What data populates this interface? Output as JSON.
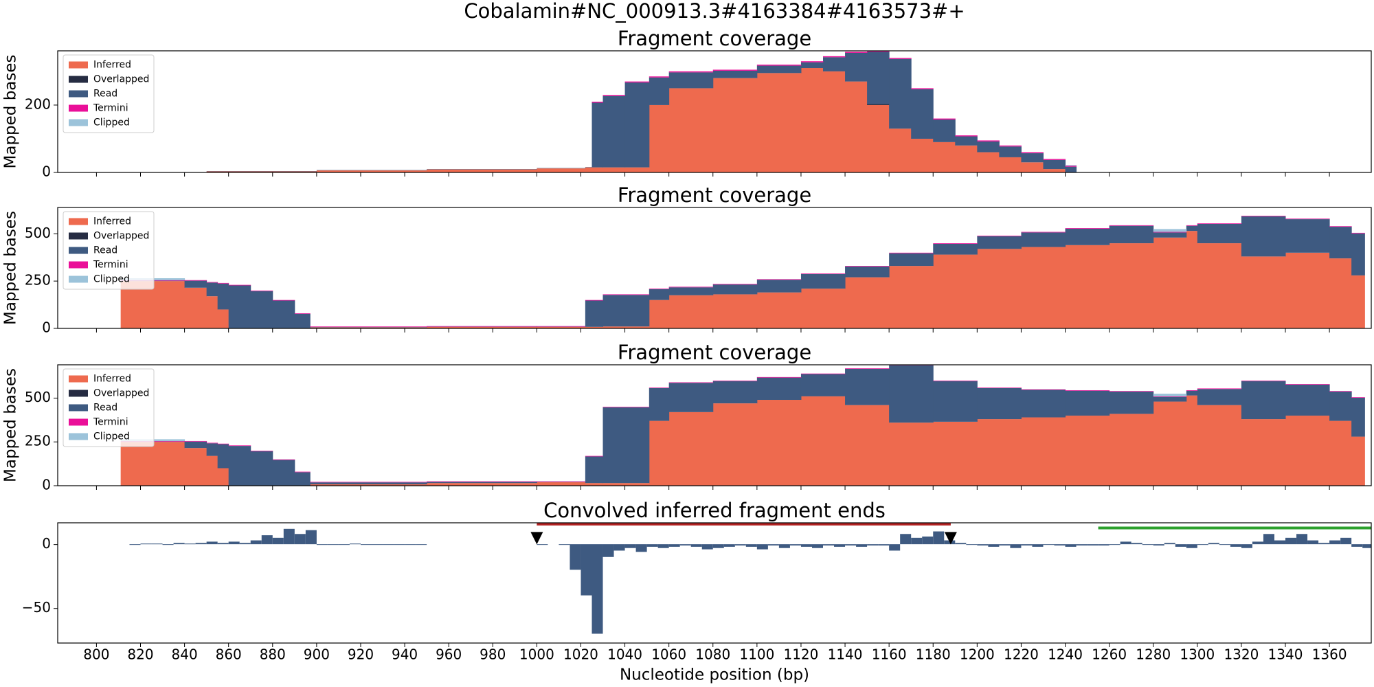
{
  "title": "Cobalamin#NC_000913.3#4163384#4163573#+",
  "chart_data": [
    {
      "type": "stacked-step",
      "title": "Fragment coverage",
      "ylabel": "Mapped bases",
      "legend": "upper left",
      "xlim": [
        782.4,
        1379
      ],
      "xticks": [
        800,
        820,
        840,
        860,
        880,
        900,
        920,
        940,
        960,
        980,
        1000,
        1020,
        1040,
        1060,
        1080,
        1100,
        1120,
        1140,
        1160,
        1180,
        1200,
        1220,
        1240,
        1260,
        1280,
        1300,
        1320,
        1340,
        1360
      ],
      "ylim": [
        0,
        361
      ],
      "yticks": [
        0,
        200
      ],
      "x": [
        812,
        850,
        900,
        950,
        1000,
        1022,
        1025,
        1030,
        1040,
        1051,
        1060,
        1080,
        1100,
        1120,
        1130,
        1140,
        1150,
        1160,
        1170,
        1180,
        1190,
        1200,
        1210,
        1220,
        1230,
        1240,
        1245
      ],
      "series": [
        {
          "name": "Inferred",
          "color": "#ee6a4e",
          "values": [
            0,
            3,
            6,
            9,
            12,
            15,
            15,
            15,
            15,
            200,
            250,
            280,
            295,
            310,
            300,
            270,
            200,
            130,
            100,
            90,
            80,
            60,
            45,
            30,
            10,
            0,
            0
          ]
        },
        {
          "name": "Overlapped",
          "color": "#262c42",
          "values": [
            0,
            0,
            0,
            0,
            0,
            0,
            0,
            0,
            0,
            0,
            0,
            0,
            0,
            0,
            0,
            0,
            3,
            0,
            0,
            0,
            0,
            0,
            0,
            0,
            0,
            0,
            0
          ]
        },
        {
          "name": "Read",
          "color": "#3e5a81",
          "values": [
            1,
            1,
            1,
            1,
            1,
            1,
            192,
            212,
            252,
            82,
            47,
            22,
            22,
            17,
            42,
            85,
            155,
            207,
            147,
            67,
            27,
            32,
            32,
            27,
            27,
            17,
            0
          ]
        },
        {
          "name": "Termini",
          "color": "#ea0f98",
          "values": [
            0,
            0,
            0,
            0,
            0,
            0,
            3,
            3,
            3,
            3,
            3,
            3,
            3,
            3,
            3,
            3,
            3,
            3,
            3,
            3,
            3,
            3,
            3,
            3,
            3,
            3,
            0
          ]
        },
        {
          "name": "Clipped",
          "color": "#9cc3da",
          "values": [
            0,
            0,
            0,
            0,
            0,
            0,
            0,
            0,
            0,
            0,
            0,
            0,
            0,
            0,
            0,
            0,
            0,
            0,
            0,
            0,
            0,
            0,
            0,
            0,
            0,
            2,
            0
          ]
        }
      ]
    },
    {
      "type": "stacked-step",
      "title": "Fragment coverage",
      "ylabel": "Mapped bases",
      "legend": "upper left",
      "xlim": [
        782.4,
        1379
      ],
      "xticks": [
        800,
        820,
        840,
        860,
        880,
        900,
        920,
        940,
        960,
        980,
        1000,
        1020,
        1040,
        1060,
        1080,
        1100,
        1120,
        1140,
        1160,
        1180,
        1200,
        1220,
        1240,
        1260,
        1280,
        1300,
        1320,
        1340,
        1360
      ],
      "ylim": [
        0,
        639
      ],
      "yticks": [
        0,
        250,
        500
      ],
      "x": [
        811,
        840,
        850,
        855,
        860,
        870,
        880,
        890,
        897,
        950,
        1000,
        1022,
        1030,
        1051,
        1060,
        1080,
        1100,
        1120,
        1140,
        1160,
        1180,
        1200,
        1220,
        1240,
        1260,
        1280,
        1295,
        1300,
        1320,
        1340,
        1360,
        1370,
        1376
      ],
      "series": [
        {
          "name": "Inferred",
          "color": "#ee6a4e",
          "values": [
            250,
            215,
            170,
            100,
            0,
            0,
            0,
            0,
            5,
            8,
            8,
            8,
            10,
            150,
            175,
            180,
            190,
            210,
            270,
            330,
            390,
            420,
            430,
            440,
            450,
            480,
            515,
            450,
            380,
            400,
            370,
            280,
            0
          ]
        },
        {
          "name": "Overlapped",
          "color": "#262c42",
          "values": [
            0,
            0,
            0,
            0,
            0,
            0,
            0,
            0,
            0,
            0,
            0,
            0,
            0,
            0,
            0,
            0,
            0,
            0,
            0,
            0,
            0,
            0,
            0,
            0,
            0,
            0,
            0,
            0,
            0,
            0,
            0,
            0,
            0
          ]
        },
        {
          "name": "Read",
          "color": "#3e5a81",
          "values": [
            2,
            37,
            72,
            137,
            227,
            197,
            147,
            77,
            2,
            1,
            1,
            139,
            167,
            57,
            42,
            52,
            67,
            77,
            57,
            67,
            57,
            67,
            77,
            87,
            92,
            27,
            27,
            102,
            212,
            177,
            167,
            222,
            0
          ]
        },
        {
          "name": "Termini",
          "color": "#ea0f98",
          "values": [
            3,
            3,
            3,
            3,
            3,
            3,
            3,
            3,
            3,
            3,
            3,
            3,
            3,
            3,
            3,
            3,
            3,
            3,
            3,
            3,
            3,
            3,
            3,
            3,
            3,
            3,
            3,
            3,
            3,
            3,
            3,
            3,
            0
          ]
        },
        {
          "name": "Clipped",
          "color": "#9cc3da",
          "values": [
            10,
            0,
            0,
            0,
            0,
            0,
            0,
            0,
            0,
            0,
            0,
            0,
            0,
            0,
            0,
            0,
            0,
            0,
            0,
            0,
            0,
            0,
            0,
            0,
            0,
            15,
            0,
            0,
            0,
            0,
            0,
            0,
            0
          ]
        }
      ]
    },
    {
      "type": "stacked-step",
      "title": "Fragment coverage",
      "ylabel": "Mapped bases",
      "legend": "upper left",
      "xlim": [
        782.4,
        1379
      ],
      "xticks": [
        800,
        820,
        840,
        860,
        880,
        900,
        920,
        940,
        960,
        980,
        1000,
        1020,
        1040,
        1060,
        1080,
        1100,
        1120,
        1140,
        1160,
        1180,
        1200,
        1220,
        1240,
        1260,
        1280,
        1300,
        1320,
        1340,
        1360
      ],
      "ylim": [
        0,
        690
      ],
      "yticks": [
        0,
        250,
        500
      ],
      "x": [
        811,
        840,
        850,
        855,
        860,
        870,
        880,
        890,
        897,
        950,
        1000,
        1022,
        1030,
        1051,
        1060,
        1080,
        1100,
        1120,
        1140,
        1160,
        1180,
        1200,
        1220,
        1240,
        1260,
        1280,
        1295,
        1300,
        1320,
        1340,
        1360,
        1370,
        1376
      ],
      "series": [
        {
          "name": "Inferred",
          "color": "#ee6a4e",
          "values": [
            250,
            215,
            170,
            100,
            0,
            0,
            0,
            0,
            8,
            15,
            20,
            15,
            15,
            370,
            420,
            470,
            490,
            510,
            460,
            360,
            365,
            380,
            390,
            400,
            410,
            480,
            515,
            460,
            380,
            400,
            370,
            280,
            0
          ]
        },
        {
          "name": "Overlapped",
          "color": "#262c42",
          "values": [
            0,
            0,
            0,
            0,
            0,
            0,
            0,
            0,
            0,
            0,
            0,
            0,
            0,
            0,
            0,
            0,
            0,
            0,
            0,
            0,
            0,
            0,
            0,
            0,
            0,
            0,
            0,
            0,
            0,
            0,
            0,
            0,
            0
          ]
        },
        {
          "name": "Read",
          "color": "#3e5a81",
          "values": [
            2,
            37,
            72,
            137,
            227,
            197,
            147,
            77,
            11,
            7,
            2,
            152,
            432,
            187,
            167,
            127,
            127,
            127,
            207,
            327,
            232,
            177,
            157,
            142,
            127,
            27,
            27,
            92,
            217,
            177,
            167,
            222,
            0
          ]
        },
        {
          "name": "Termini",
          "color": "#ea0f98",
          "values": [
            3,
            3,
            3,
            3,
            3,
            3,
            3,
            3,
            3,
            3,
            3,
            3,
            3,
            3,
            3,
            3,
            3,
            3,
            3,
            3,
            3,
            3,
            3,
            3,
            3,
            3,
            3,
            3,
            3,
            3,
            3,
            3,
            0
          ]
        },
        {
          "name": "Clipped",
          "color": "#9cc3da",
          "values": [
            10,
            0,
            0,
            0,
            0,
            0,
            0,
            0,
            0,
            0,
            0,
            0,
            0,
            0,
            0,
            0,
            0,
            0,
            0,
            0,
            0,
            0,
            0,
            0,
            0,
            15,
            0,
            0,
            0,
            0,
            0,
            0,
            0
          ]
        }
      ]
    },
    {
      "type": "bar",
      "title": "Convolved inferred fragment ends",
      "xlabel": "Nucleotide position (bp)",
      "xlim": [
        782.4,
        1379
      ],
      "xticks": [
        800,
        820,
        840,
        860,
        880,
        900,
        920,
        940,
        960,
        980,
        1000,
        1020,
        1040,
        1060,
        1080,
        1100,
        1120,
        1140,
        1160,
        1180,
        1200,
        1220,
        1240,
        1260,
        1280,
        1300,
        1320,
        1340,
        1360
      ],
      "ylim": [
        -77,
        17
      ],
      "yticks": [
        {
          "value": -50,
          "label": "−50"
        },
        0
      ],
      "color": "#3e5a81",
      "bar_width": 5,
      "x": [
        815,
        820,
        825,
        830,
        835,
        840,
        845,
        850,
        855,
        860,
        865,
        870,
        875,
        880,
        885,
        890,
        895,
        900,
        905,
        910,
        915,
        920,
        925,
        930,
        935,
        940,
        945,
        950,
        955,
        960,
        965,
        970,
        975,
        980,
        985,
        990,
        995,
        1000,
        1005,
        1010,
        1015,
        1020,
        1025,
        1030,
        1035,
        1040,
        1045,
        1050,
        1055,
        1060,
        1065,
        1070,
        1075,
        1080,
        1085,
        1090,
        1095,
        1100,
        1105,
        1110,
        1115,
        1120,
        1125,
        1130,
        1135,
        1140,
        1145,
        1150,
        1155,
        1160,
        1165,
        1170,
        1175,
        1180,
        1185,
        1190,
        1195,
        1200,
        1205,
        1210,
        1215,
        1220,
        1225,
        1230,
        1235,
        1240,
        1245,
        1250,
        1255,
        1260,
        1265,
        1270,
        1275,
        1280,
        1285,
        1290,
        1295,
        1300,
        1305,
        1310,
        1315,
        1320,
        1325,
        1330,
        1335,
        1340,
        1345,
        1350,
        1355,
        1360,
        1365,
        1370,
        1375
      ],
      "values": [
        0,
        0.5,
        0.5,
        0,
        1,
        0.5,
        1,
        2,
        1,
        2,
        1,
        3,
        7,
        5,
        12,
        8,
        11,
        0,
        0,
        0,
        0.5,
        0,
        0,
        0,
        0,
        0,
        0,
        null,
        null,
        null,
        null,
        null,
        null,
        null,
        null,
        null,
        null,
        0,
        null,
        0,
        -20,
        -40,
        -70,
        -10,
        -5,
        -3,
        -6,
        -2,
        -3,
        -2,
        -1,
        -2,
        -4,
        -3,
        -2,
        -1,
        -2,
        -4,
        -1,
        -3,
        -1,
        -2,
        -3,
        -1,
        -2,
        -1,
        -2,
        -1,
        -1,
        -5,
        8,
        5,
        6,
        10,
        3,
        1,
        0,
        -1,
        -2,
        -1,
        -3,
        -1,
        -2,
        0,
        -1,
        -2,
        -1,
        -1,
        -1,
        0,
        2,
        1,
        0,
        -1,
        1,
        -2,
        -3,
        0,
        1,
        0,
        -2,
        -3,
        2,
        8,
        3,
        5,
        8,
        3,
        1,
        3,
        5,
        -2,
        -3
      ],
      "markers": {
        "color": "#000000",
        "x": [
          1000,
          1188
        ],
        "y": [
          5,
          5
        ]
      },
      "lines": [
        {
          "color": "#b22222",
          "x": [
            1000,
            1188
          ],
          "y": [
            16,
            16
          ]
        },
        {
          "color": "#2ca02c",
          "x": [
            1255,
            1379
          ],
          "y": [
            13,
            13
          ]
        }
      ]
    }
  ]
}
